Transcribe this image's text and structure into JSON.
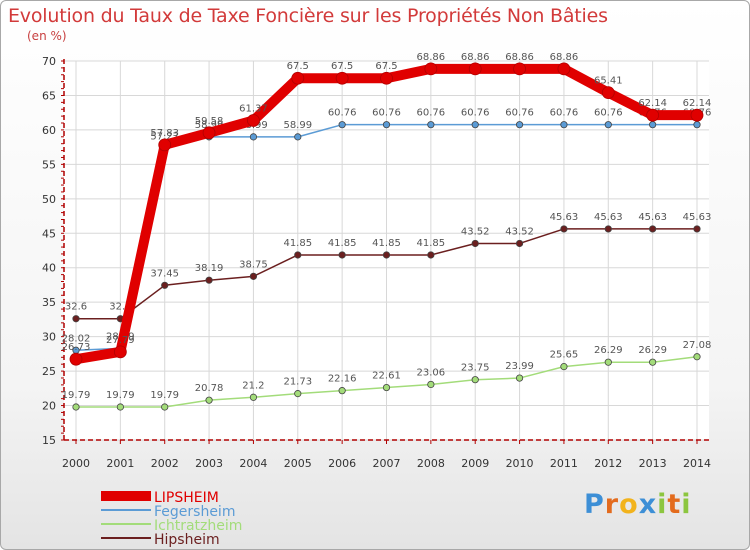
{
  "chart_data": {
    "type": "line",
    "title": "Evolution du Taux de Taxe Foncière sur les Propriétés Non Bâties",
    "ylabel": "(en %)",
    "xlabel": "",
    "ylim": [
      15,
      70
    ],
    "yticks": [
      15,
      20,
      25,
      30,
      35,
      40,
      45,
      50,
      55,
      60,
      65,
      70
    ],
    "categories": [
      "2000",
      "2001",
      "2002",
      "2003",
      "2004",
      "2005",
      "2006",
      "2007",
      "2008",
      "2009",
      "2010",
      "2011",
      "2012",
      "2013",
      "2014"
    ],
    "series": [
      {
        "name": "Hipsheim",
        "color": "#6b1f1f",
        "values": [
          32.6,
          32.6,
          37.45,
          38.19,
          38.75,
          41.85,
          41.85,
          41.85,
          41.85,
          43.52,
          43.52,
          45.63,
          45.63,
          45.63,
          45.63
        ],
        "labels": [
          "32.6",
          "32.6",
          "37.45",
          "38.19",
          "38.75",
          "41.85",
          "41.85",
          "41.85",
          "41.85",
          "43.52",
          "43.52",
          "45.63",
          "45.63",
          "45.63",
          "45.63"
        ]
      },
      {
        "name": "Ichtratzheim",
        "color": "#a3dc7a",
        "values": [
          19.79,
          19.79,
          19.79,
          20.78,
          21.2,
          21.73,
          22.16,
          22.61,
          23.06,
          23.75,
          23.99,
          25.65,
          26.29,
          26.29,
          27.08
        ],
        "labels": [
          "19.79",
          "19.79",
          "19.79",
          "20.78",
          "21.2",
          "21.73",
          "22.16",
          "22.61",
          "23.06",
          "23.75",
          "23.99",
          "25.65",
          "26.29",
          "26.29",
          "27.08"
        ]
      },
      {
        "name": "Fegersheim",
        "color": "#5b9bd5",
        "values": [
          28.02,
          28.29,
          57.27,
          58.99,
          58.99,
          58.99,
          60.76,
          60.76,
          60.76,
          60.76,
          60.76,
          60.76,
          60.76,
          60.76,
          60.76
        ],
        "labels": [
          "28.02",
          "28.29",
          "57.27",
          "58.99",
          "58.99",
          "58.99",
          "60.76",
          "60.76",
          "60.76",
          "60.76",
          "60.76",
          "60.76",
          "60.76",
          "60.76",
          "60.76"
        ]
      },
      {
        "name": "LIPSHEIM",
        "color": "#e00000",
        "values": [
          26.73,
          27.79,
          57.83,
          59.58,
          61.37,
          67.5,
          67.5,
          67.5,
          68.86,
          68.86,
          68.86,
          68.86,
          65.41,
          62.14,
          62.14
        ],
        "labels": [
          "26.73",
          "27.79",
          "57.83",
          "59.58",
          "61.37",
          "67.5",
          "67.5",
          "67.5",
          "68.86",
          "68.86",
          "68.86",
          "68.86",
          "65.41",
          "62.14",
          "62.14"
        ]
      }
    ],
    "legend": [
      "LIPSHEIM",
      "Fegersheim",
      "Ichtratzheim",
      "Hipsheim"
    ],
    "legend_position": "bottom-left"
  },
  "logo": {
    "p": "P",
    "r": "r",
    "o": "o",
    "x": "x",
    "i1": "i",
    "t": "t",
    "i2": "i"
  },
  "colors": {
    "title": "#d23a3a",
    "grid": "#d8d8d8",
    "axis": "#b00000"
  }
}
